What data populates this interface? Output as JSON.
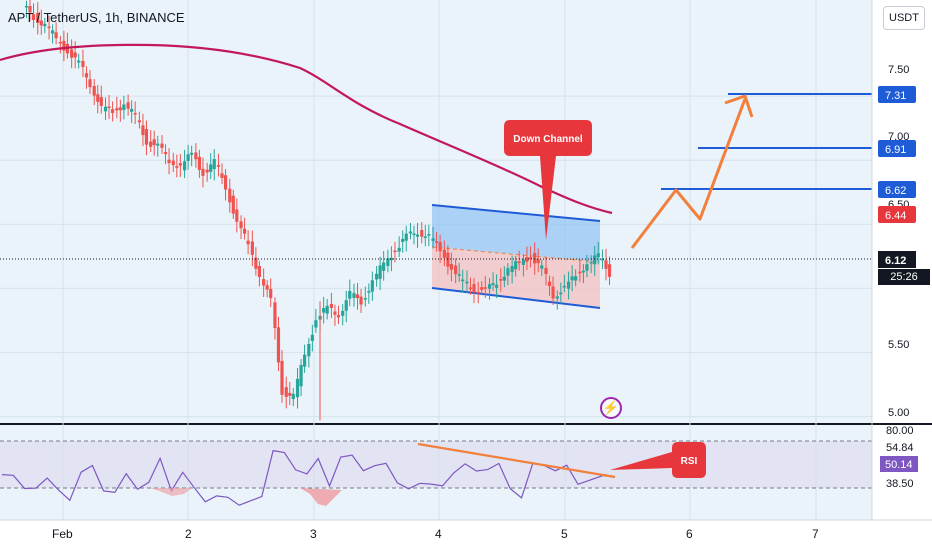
{
  "header": {
    "symbol": "APT / TetherUS, 1h, BINANCE",
    "currency_button": "USDT"
  },
  "price_axis": {
    "ticks": [
      "7.50",
      "7.00",
      "6.50",
      "5.50",
      "5.00"
    ],
    "current_price": "6.12",
    "countdown": "25:26",
    "ma_value": "6.44",
    "target_labels": [
      "7.31",
      "6.91",
      "6.62"
    ]
  },
  "rsi_axis": {
    "ticks": [
      "80.00",
      "54.84",
      "50.14",
      "38.50"
    ]
  },
  "time_axis": {
    "labels": [
      "Feb",
      "2",
      "3",
      "4",
      "5",
      "6",
      "7"
    ]
  },
  "annotations": {
    "down_channel": "Down Channel",
    "rsi": "RSI"
  },
  "colors": {
    "up": "#26a69a",
    "down": "#ef5350",
    "ma": "#c2185b",
    "target_line": "#1e5bd6",
    "projection": "#f37f3d",
    "channel": "#1e5bd6",
    "rsi_line": "#7e57c2",
    "price_label_bg": "#131722",
    "callout_red": "#e8363d"
  },
  "chart_data": {
    "type": "candlestick",
    "symbol": "APT / TetherUS",
    "interval": "1h",
    "exchange": "BINANCE",
    "x_labels": [
      "Feb",
      "2",
      "3",
      "4",
      "5",
      "6",
      "7"
    ],
    "ylim": [
      4.95,
      8.25
    ],
    "current_price": 6.12,
    "moving_average_last": 6.44,
    "targets": [
      6.62,
      6.91,
      7.31
    ],
    "closes": [
      8.12,
      8.05,
      7.95,
      7.85,
      7.75,
      7.6,
      7.4,
      7.38,
      7.44,
      7.34,
      7.15,
      7.1,
      7.0,
      6.95,
      7.05,
      6.9,
      6.98,
      6.8,
      6.5,
      6.35,
      6.1,
      5.9,
      5.2,
      5.15,
      5.5,
      5.75,
      5.85,
      5.8,
      5.95,
      5.9,
      6.05,
      6.2,
      6.3,
      6.4,
      6.45,
      6.4,
      6.3,
      6.15,
      6.05,
      6.0,
      5.98,
      6.05,
      6.15,
      6.2,
      6.25,
      6.15,
      5.95,
      6.0,
      6.1,
      6.2,
      6.25,
      6.12
    ],
    "ma_line": [
      [
        0,
        7.83
      ],
      [
        40,
        7.86
      ],
      [
        90,
        7.87
      ],
      [
        150,
        7.85
      ],
      [
        200,
        7.79
      ],
      [
        250,
        7.7
      ],
      [
        300,
        7.55
      ],
      [
        330,
        7.3
      ],
      [
        350,
        7.14
      ],
      [
        400,
        6.96
      ],
      [
        450,
        6.78
      ],
      [
        500,
        6.6
      ],
      [
        540,
        6.45
      ],
      [
        560,
        6.44
      ]
    ],
    "down_channel": {
      "upper": [
        [
          430,
          6.53
        ],
        [
          600,
          6.33
        ]
      ],
      "lower": [
        [
          430,
          5.95
        ],
        [
          600,
          5.77
        ]
      ],
      "mid": [
        [
          430,
          6.24
        ],
        [
          600,
          6.05
        ]
      ]
    },
    "projection": [
      [
        633,
        6.2
      ],
      [
        680,
        6.6
      ],
      [
        700,
        6.37
      ],
      [
        745,
        7.31
      ]
    ],
    "rsi": {
      "levels": [
        80.0,
        54.84,
        50.14,
        38.5
      ],
      "divergence_line": [
        [
          418,
          61
        ],
        [
          615,
          38
        ]
      ]
    }
  }
}
